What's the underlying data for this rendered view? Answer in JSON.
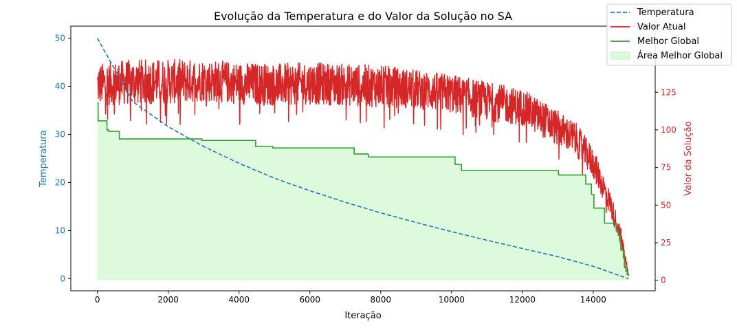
{
  "chart_data": {
    "type": "line",
    "title": "Evolução da Temperatura e do Valor da Solução no SA",
    "xlabel": "Iteração",
    "ylabel_left": "Temperatura",
    "ylabel_right": "Valor da Solução",
    "xlim": [
      -750,
      15750
    ],
    "ylim_left": [
      -2.5,
      52.5
    ],
    "ylim_right": [
      -7,
      169
    ],
    "x_ticks": [
      0,
      2000,
      4000,
      6000,
      8000,
      10000,
      12000,
      14000
    ],
    "y_left_ticks": [
      0,
      10,
      20,
      30,
      40,
      50
    ],
    "y_right_ticks": [
      0,
      25,
      50,
      75,
      100,
      125
    ],
    "grid": false,
    "legend_position": "top-right",
    "colors": {
      "temperature": "#1f77b4",
      "current": "#d62728",
      "best": "#2ca02c",
      "best_fill": "#90ee90",
      "axis_left": "#1f77b4",
      "axis_right": "#d62728"
    },
    "series": [
      {
        "name": "Temperatura",
        "axis": "left",
        "style": "dashed",
        "x": [
          0,
          1000,
          2000,
          3000,
          4000,
          5000,
          6000,
          7000,
          8000,
          9000,
          10000,
          11000,
          12000,
          13000,
          14000,
          15000
        ],
        "values": [
          50,
          36.8,
          31.6,
          27.5,
          24.0,
          20.9,
          18.3,
          15.9,
          13.7,
          11.7,
          9.8,
          8.0,
          6.3,
          4.6,
          2.6,
          0
        ]
      },
      {
        "name": "Valor Atual",
        "axis": "right",
        "style": "noisy",
        "x": [
          0,
          1000,
          2000,
          3000,
          4000,
          5000,
          6000,
          7000,
          8000,
          9000,
          10000,
          11000,
          12000,
          12800,
          13500,
          14000,
          14500,
          14800,
          15000
        ],
        "values": [
          130,
          132,
          132,
          133,
          131,
          130,
          131,
          130,
          129,
          127,
          124,
          119,
          115,
          104,
          94,
          78,
          50,
          27,
          3
        ],
        "spread": [
          14,
          15,
          15,
          14,
          14,
          14,
          14,
          14,
          14,
          13,
          13,
          13,
          12,
          12,
          11,
          10,
          8,
          6,
          2
        ]
      },
      {
        "name": "Melhor Global",
        "axis": "right",
        "style": "step",
        "x": [
          0,
          20,
          270,
          320,
          620,
          2900,
          2950,
          4430,
          4470,
          4950,
          7250,
          7650,
          10080,
          10100,
          10280,
          12980,
          13020,
          13790,
          13950,
          14020,
          14320,
          14650,
          14710,
          14760,
          14780,
          14850,
          14880,
          14920,
          14960,
          15000
        ],
        "values": [
          118,
          106,
          100,
          99,
          94,
          94,
          93,
          93,
          89,
          88,
          84,
          82,
          82,
          77,
          73,
          73,
          70,
          64,
          57,
          48,
          38,
          33,
          30,
          25,
          20,
          15,
          9,
          6,
          4,
          3
        ]
      }
    ],
    "fill": {
      "name": "Área Melhor Global",
      "source": "Melhor Global",
      "baseline": 0
    }
  }
}
